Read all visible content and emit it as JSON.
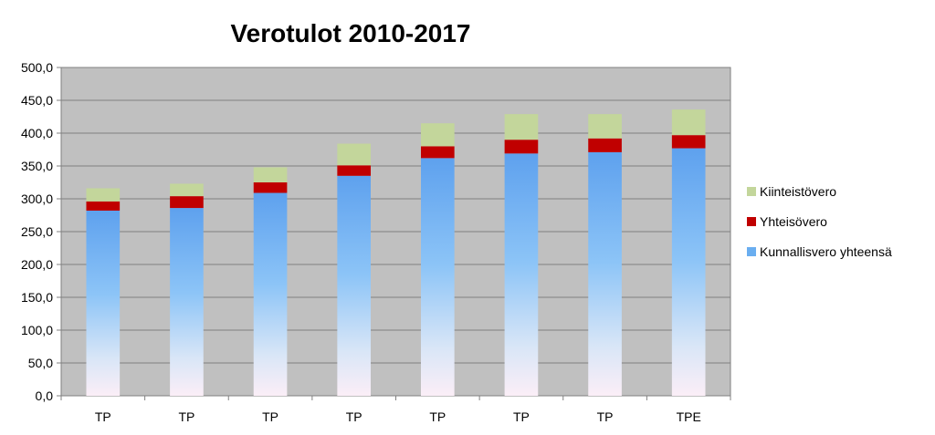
{
  "chart_data": {
    "type": "bar",
    "stacked": true,
    "title": "Verotulot 2010-2017",
    "xlabel": "",
    "ylabel": "",
    "categories": [
      "TP",
      "TP",
      "TP",
      "TP",
      "TP",
      "TP",
      "TP",
      "TPE"
    ],
    "ylim": [
      0,
      500
    ],
    "yticks": [
      "0,0",
      "50,0",
      "100,0",
      "150,0",
      "200,0",
      "250,0",
      "300,0",
      "350,0",
      "400,0",
      "450,0",
      "500,0"
    ],
    "grid": true,
    "legend_position": "right",
    "series": [
      {
        "name": "Kunnallisvero yhteensä",
        "values": [
          282,
          286,
          309,
          335,
          362,
          369,
          371,
          377
        ],
        "color": "#6aaef0"
      },
      {
        "name": "Yhteisövero",
        "values": [
          14,
          18,
          16,
          16,
          18,
          21,
          21,
          20
        ],
        "color": "#c00000"
      },
      {
        "name": "Kiinteistövero",
        "values": [
          20,
          19,
          23,
          33,
          35,
          39,
          37,
          39
        ],
        "color": "#c3d69b"
      }
    ],
    "legend_order": [
      "Kiinteistövero",
      "Yhteisövero",
      "Kunnallisvero yhteensä"
    ]
  }
}
